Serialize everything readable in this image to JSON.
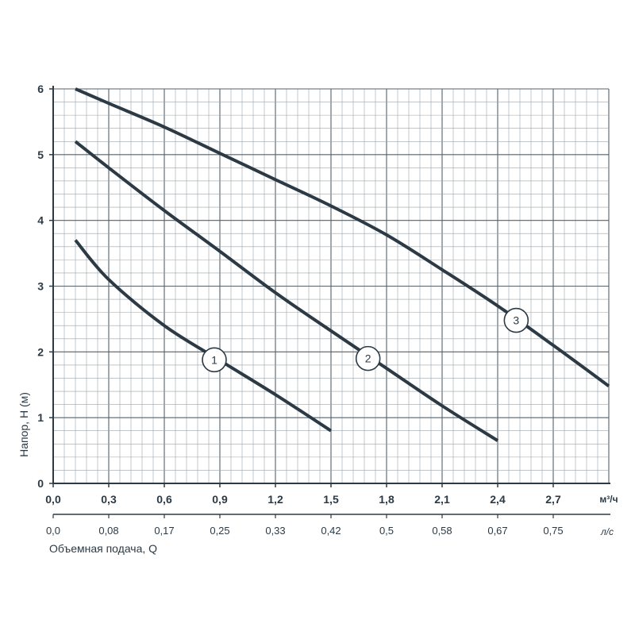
{
  "colors": {
    "curve": "#2c3a45",
    "grid": "#9aa3aa",
    "grid_major": "#55606a",
    "axis": "#2c3a45",
    "text": "#2c3a45"
  },
  "chart_data": {
    "type": "line",
    "ylabel": "Напор, Н (м)",
    "xlabel": "Объемная подача, Q",
    "x_unit": "м³/ч",
    "x2_unit": "л/с",
    "xlim": [
      0,
      3.0
    ],
    "ylim": [
      0,
      6
    ],
    "grid": true,
    "x_ticks": [
      "0,0",
      "0,3",
      "0,6",
      "0,9",
      "1,2",
      "1,5",
      "1,8",
      "2,1",
      "2,4",
      "2,7"
    ],
    "x_tick_values": [
      0,
      0.3,
      0.6,
      0.9,
      1.2,
      1.5,
      1.8,
      2.1,
      2.4,
      2.7
    ],
    "x2_ticks": [
      "0,0",
      "0,08",
      "0,17",
      "0,25",
      "0,33",
      "0,42",
      "0,5",
      "0,58",
      "0,67",
      "0,75"
    ],
    "y_ticks": [
      "0",
      "1",
      "2",
      "3",
      "4",
      "5",
      "6"
    ],
    "y_tick_values": [
      0,
      1,
      2,
      3,
      4,
      5,
      6
    ],
    "series": [
      {
        "name": "1",
        "label_at": [
          0.87,
          1.88
        ],
        "x": [
          0.12,
          0.3,
          0.6,
          0.9,
          1.2,
          1.5
        ],
        "y": [
          3.7,
          3.1,
          2.4,
          1.87,
          1.35,
          0.8
        ]
      },
      {
        "name": "2",
        "label_at": [
          1.7,
          1.9
        ],
        "x": [
          0.12,
          0.3,
          0.6,
          0.9,
          1.2,
          1.5,
          1.8,
          2.1,
          2.4
        ],
        "y": [
          5.2,
          4.8,
          4.15,
          3.53,
          2.9,
          2.32,
          1.75,
          1.18,
          0.65
        ]
      },
      {
        "name": "3",
        "label_at": [
          2.5,
          2.48
        ],
        "x": [
          0.12,
          0.3,
          0.6,
          0.9,
          1.2,
          1.5,
          1.8,
          2.1,
          2.4,
          2.7,
          3.0
        ],
        "y": [
          6.0,
          5.78,
          5.42,
          5.02,
          4.62,
          4.22,
          3.78,
          3.25,
          2.7,
          2.1,
          1.48
        ]
      }
    ]
  }
}
